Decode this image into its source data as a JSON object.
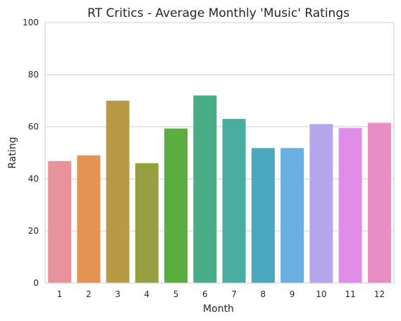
{
  "chart_data": {
    "type": "bar",
    "title": "RT Critics - Average Monthly 'Music' Ratings",
    "xlabel": "Month",
    "ylabel": "Rating",
    "categories": [
      "1",
      "2",
      "3",
      "4",
      "5",
      "6",
      "7",
      "8",
      "9",
      "10",
      "11",
      "12"
    ],
    "values": [
      46.8,
      49.0,
      70.0,
      46.0,
      59.3,
      72.0,
      63.0,
      51.8,
      51.8,
      61.0,
      59.5,
      61.5
    ],
    "colors": [
      "#e8929c",
      "#e59352",
      "#b99a44",
      "#97a041",
      "#5aad3f",
      "#48ad86",
      "#4baca0",
      "#4aa8bf",
      "#6baee1",
      "#b6a6ec",
      "#df8ceb",
      "#e98ec5"
    ],
    "ylim": [
      0,
      100
    ],
    "yticks": [
      "0",
      "20",
      "40",
      "60",
      "80",
      "100"
    ],
    "grid": true,
    "legend": "none"
  }
}
